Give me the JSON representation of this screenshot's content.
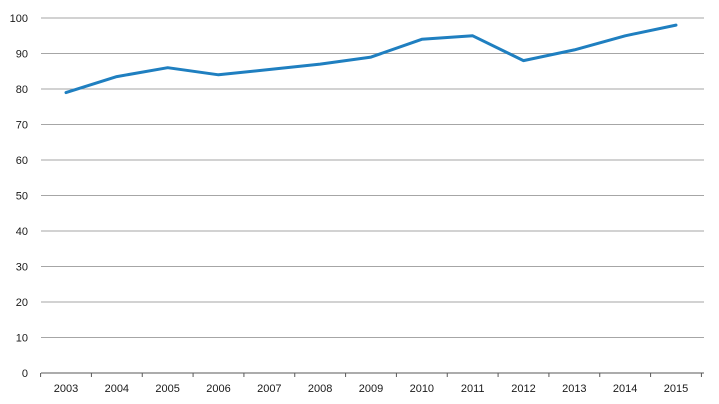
{
  "chart_data": {
    "type": "line",
    "title": "",
    "xlabel": "",
    "ylabel": "",
    "x": [
      "2003",
      "2004",
      "2005",
      "2006",
      "2007",
      "2008",
      "2009",
      "2010",
      "2011",
      "2012",
      "2013",
      "2014",
      "2015"
    ],
    "series": [
      {
        "values": [
          79,
          83.5,
          86,
          84,
          85.5,
          87,
          89,
          94,
          95,
          88,
          91,
          95,
          98
        ],
        "color": "#1f7fc0"
      }
    ],
    "ylim": [
      0,
      100
    ],
    "yticks": [
      0,
      10,
      20,
      30,
      40,
      50,
      60,
      70,
      80,
      90,
      100
    ],
    "grid": true,
    "legend": "none",
    "colors": {
      "gridline": "#a6a6a6",
      "axis": "#595959",
      "text": "#1a1a1a"
    }
  }
}
